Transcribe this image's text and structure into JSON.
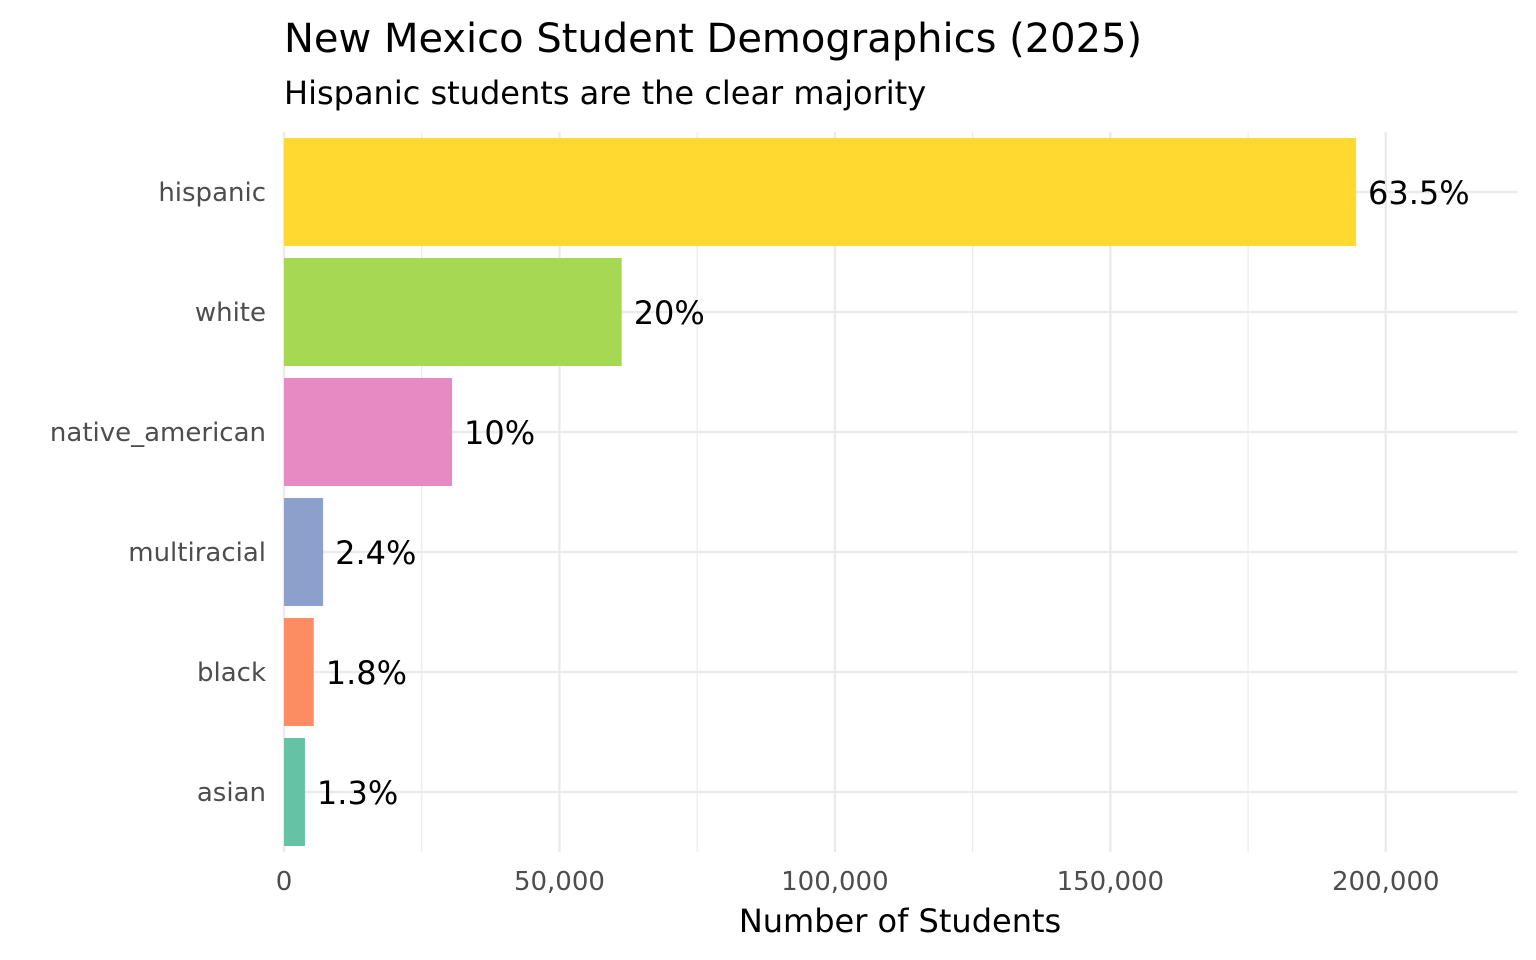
{
  "chart_data": {
    "type": "bar",
    "orientation": "horizontal",
    "title": "New Mexico Student Demographics (2025)",
    "subtitle": "Hispanic students are the clear majority",
    "xlabel": "Number of Students",
    "ylabel": "",
    "xlim": [
      0,
      224000
    ],
    "x_ticks": [
      0,
      50000,
      100000,
      150000,
      200000
    ],
    "x_tick_labels": [
      "0",
      "50,000",
      "100,000",
      "150,000",
      "200,000"
    ],
    "grid": true,
    "legend": "none",
    "categories": [
      "hispanic",
      "white",
      "native_american",
      "multiracial",
      "black",
      "asian"
    ],
    "values": [
      194600,
      61300,
      30500,
      7100,
      5400,
      3800
    ],
    "labels": [
      "63.5%",
      "20%",
      "10%",
      "2.4%",
      "1.8%",
      "1.3%"
    ],
    "colors": [
      "#FFD92F",
      "#A6D854",
      "#E78AC3",
      "#8DA0CB",
      "#FC8D62",
      "#66C2A5"
    ]
  }
}
